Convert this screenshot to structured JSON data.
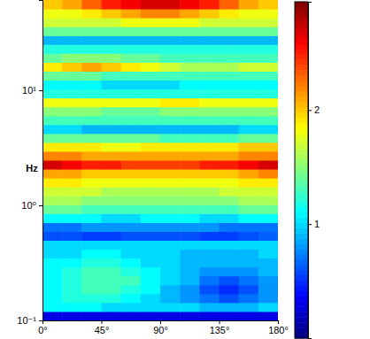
{
  "chart_data": {
    "type": "heatmap",
    "ylabel": "Hz",
    "log": "y",
    "xlim": [
      0,
      180
    ],
    "ylim": [
      0.1,
      61
    ],
    "xticks": [
      {
        "value": 0,
        "label": "0°"
      },
      {
        "value": 45,
        "label": "45°"
      },
      {
        "value": 90,
        "label": "90°"
      },
      {
        "value": 135,
        "label": "135°"
      },
      {
        "value": 180,
        "label": "180°"
      }
    ],
    "yticks": [
      {
        "value": 0.1,
        "label": "10⁻¹"
      },
      {
        "value": 1,
        "label": "10⁰"
      },
      {
        "value": 10,
        "label": "10¹"
      }
    ],
    "x_edges": [
      0,
      15,
      30,
      45,
      60,
      75,
      90,
      105,
      120,
      135,
      150,
      165,
      180
    ],
    "y_edges": [
      0.1,
      0.1195,
      0.1428,
      0.1707,
      0.204,
      0.2436,
      0.2911,
      0.3479,
      0.4157,
      0.4968,
      0.5937,
      0.7094,
      0.8478,
      1.0132,
      1.2107,
      1.4469,
      1.729,
      2.0662,
      2.4692,
      2.9507,
      3.5262,
      4.2138,
      5.0356,
      6.0177,
      7.1912,
      8.5901,
      10.265,
      12.267,
      14.659,
      17.518,
      20.934,
      25.017,
      29.896,
      35.726,
      42.693,
      51.02,
      61
    ],
    "z": [
      [
        0.3,
        0.3,
        0.3,
        0.3,
        0.3,
        0.3,
        0.3,
        0.3,
        0.3,
        0.3,
        0.3,
        0.3
      ],
      [
        1.1,
        1.1,
        1.1,
        1.0,
        1.0,
        1.0,
        1.0,
        1.0,
        0.9,
        0.9,
        0.9,
        1.0
      ],
      [
        1.1,
        1.2,
        1.2,
        1.2,
        1.1,
        1.0,
        0.9,
        0.8,
        0.7,
        0.6,
        0.7,
        0.8
      ],
      [
        1.1,
        1.2,
        1.3,
        1.3,
        1.2,
        1.1,
        0.9,
        0.8,
        0.6,
        0.5,
        0.6,
        0.8
      ],
      [
        1.1,
        1.2,
        1.3,
        1.3,
        1.3,
        1.1,
        1.0,
        0.9,
        0.7,
        0.6,
        0.7,
        0.8
      ],
      [
        1.1,
        1.2,
        1.3,
        1.3,
        1.2,
        1.1,
        1.0,
        0.9,
        0.8,
        0.8,
        0.8,
        0.9
      ],
      [
        1.1,
        1.1,
        1.2,
        1.2,
        1.1,
        1.0,
        1.0,
        0.9,
        0.9,
        0.9,
        0.9,
        0.9
      ],
      [
        1.0,
        1.0,
        1.1,
        1.1,
        1.0,
        1.0,
        1.0,
        0.9,
        0.9,
        0.9,
        0.9,
        1.0
      ],
      [
        1.0,
        1.0,
        1.0,
        1.0,
        1.0,
        1.0,
        1.0,
        1.0,
        1.0,
        1.0,
        1.0,
        1.0
      ],
      [
        0.6,
        0.6,
        0.55,
        0.55,
        0.6,
        0.6,
        0.6,
        0.6,
        0.55,
        0.55,
        0.6,
        0.65
      ],
      [
        0.7,
        0.7,
        0.8,
        0.8,
        0.8,
        0.8,
        0.8,
        0.8,
        0.8,
        0.7,
        0.7,
        0.7
      ],
      [
        1.1,
        1.1,
        1.1,
        1.0,
        1.0,
        1.1,
        1.1,
        1.1,
        1.0,
        1.0,
        1.1,
        1.1
      ],
      [
        1.4,
        1.4,
        1.3,
        1.3,
        1.3,
        1.3,
        1.3,
        1.3,
        1.3,
        1.3,
        1.4,
        1.4
      ],
      [
        1.6,
        1.6,
        1.5,
        1.5,
        1.5,
        1.5,
        1.5,
        1.5,
        1.5,
        1.5,
        1.6,
        1.6
      ],
      [
        1.7,
        1.7,
        1.7,
        1.6,
        1.6,
        1.6,
        1.6,
        1.6,
        1.6,
        1.7,
        1.7,
        1.7
      ],
      [
        1.9,
        1.9,
        1.8,
        1.8,
        1.8,
        1.8,
        1.8,
        1.8,
        1.8,
        1.8,
        1.9,
        1.9
      ],
      [
        2.1,
        2.1,
        2.0,
        2.0,
        2.0,
        2.0,
        2.0,
        2.0,
        2.0,
        2.0,
        2.1,
        2.2
      ],
      [
        2.7,
        2.6,
        2.5,
        2.5,
        2.4,
        2.4,
        2.4,
        2.4,
        2.5,
        2.5,
        2.6,
        2.7
      ],
      [
        2.2,
        2.2,
        2.1,
        2.1,
        2.1,
        2.1,
        2.1,
        2.1,
        2.1,
        2.1,
        2.2,
        2.2
      ],
      [
        1.9,
        1.9,
        1.9,
        1.8,
        1.8,
        1.9,
        1.9,
        1.9,
        1.9,
        1.9,
        2.0,
        2.0
      ],
      [
        1.4,
        1.4,
        1.4,
        1.4,
        1.4,
        1.4,
        1.3,
        1.3,
        1.3,
        1.3,
        1.4,
        1.4
      ],
      [
        1.0,
        1.0,
        0.9,
        0.9,
        0.9,
        0.9,
        0.9,
        0.9,
        0.9,
        0.9,
        1.0,
        1.0
      ],
      [
        1.3,
        1.3,
        1.3,
        1.3,
        1.3,
        1.3,
        1.3,
        1.3,
        1.3,
        1.3,
        1.3,
        1.3
      ],
      [
        1.5,
        1.5,
        1.5,
        1.4,
        1.4,
        1.4,
        1.5,
        1.5,
        1.5,
        1.5,
        1.5,
        1.5
      ],
      [
        1.8,
        1.8,
        1.8,
        1.8,
        1.8,
        1.8,
        1.9,
        1.9,
        1.8,
        1.8,
        1.8,
        1.8
      ],
      [
        1.2,
        1.2,
        1.2,
        1.2,
        1.2,
        1.2,
        1.2,
        1.2,
        1.2,
        1.2,
        1.2,
        1.2
      ],
      [
        1.1,
        1.1,
        1.1,
        1.0,
        1.0,
        1.0,
        1.0,
        1.1,
        1.1,
        1.1,
        1.1,
        1.1
      ],
      [
        1.4,
        1.4,
        1.4,
        1.3,
        1.3,
        1.3,
        1.3,
        1.3,
        1.3,
        1.3,
        1.3,
        1.3
      ],
      [
        1.9,
        2.0,
        2.1,
        2.0,
        1.9,
        1.8,
        1.7,
        1.6,
        1.6,
        1.6,
        1.7,
        1.7
      ],
      [
        1.4,
        1.5,
        1.5,
        1.5,
        1.4,
        1.4,
        1.3,
        1.3,
        1.3,
        1.3,
        1.3,
        1.3
      ],
      [
        1.2,
        1.2,
        1.2,
        1.2,
        1.2,
        1.2,
        1.2,
        1.2,
        1.2,
        1.2,
        1.2,
        1.2
      ],
      [
        0.9,
        0.9,
        0.9,
        0.9,
        0.9,
        0.9,
        0.9,
        0.9,
        0.9,
        0.9,
        0.9,
        0.9
      ],
      [
        1.4,
        1.4,
        1.4,
        1.4,
        1.4,
        1.4,
        1.4,
        1.4,
        1.4,
        1.4,
        1.4,
        1.4
      ],
      [
        1.7,
        1.7,
        1.7,
        1.7,
        1.8,
        1.8,
        1.8,
        1.8,
        1.7,
        1.7,
        1.7,
        1.7
      ],
      [
        1.8,
        1.8,
        1.9,
        2.0,
        2.1,
        2.2,
        2.2,
        2.1,
        2.0,
        1.9,
        1.8,
        1.8
      ],
      [
        2.0,
        2.1,
        2.3,
        2.5,
        2.6,
        2.7,
        2.7,
        2.6,
        2.5,
        2.3,
        2.1,
        2.0
      ]
    ],
    "colorbar": {
      "range": [
        0,
        2.95
      ],
      "ticks": [
        1,
        2
      ]
    }
  }
}
